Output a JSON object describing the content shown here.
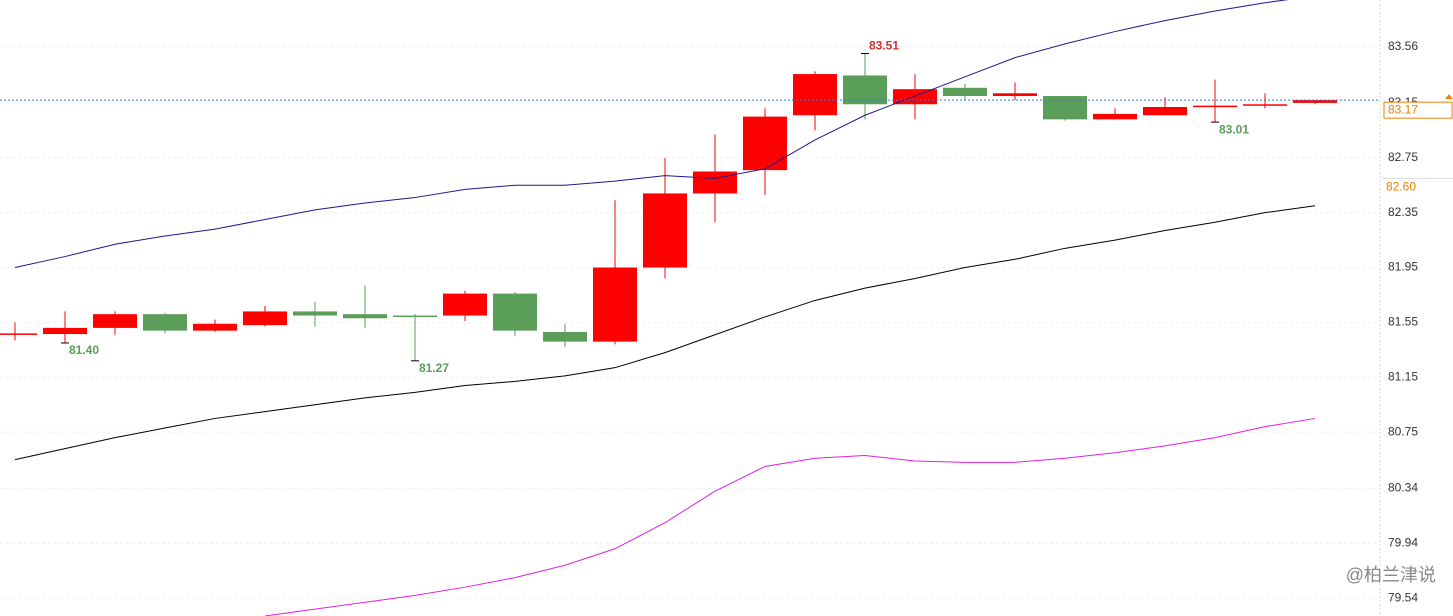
{
  "chart_data": {
    "type": "candlestick",
    "open": [
      81.46,
      81.465,
      81.51,
      81.61,
      81.49,
      81.53,
      81.63,
      81.61,
      81.6,
      81.6,
      81.76,
      81.48,
      81.41,
      81.95,
      82.49,
      82.66,
      83.06,
      83.35,
      83.14,
      83.26,
      83.2,
      83.2,
      83.03,
      83.06,
      83.12,
      83.13,
      83.15
    ],
    "high": [
      81.55,
      81.63,
      81.63,
      81.62,
      81.57,
      81.67,
      81.7,
      81.82,
      81.61,
      81.78,
      81.77,
      81.54,
      82.44,
      82.75,
      82.92,
      83.11,
      83.38,
      83.51,
      83.36,
      83.29,
      83.3,
      83.2,
      83.11,
      83.19,
      83.32,
      83.22,
      83.17
    ],
    "low": [
      81.42,
      81.4,
      81.46,
      81.47,
      81.48,
      81.52,
      81.52,
      81.51,
      81.27,
      81.56,
      81.45,
      81.37,
      81.39,
      81.87,
      82.28,
      82.48,
      82.95,
      83.03,
      83.03,
      83.17,
      83.17,
      83.02,
      83.03,
      83.06,
      83.01,
      83.11,
      83.14
    ],
    "close": [
      81.47,
      81.51,
      81.61,
      81.49,
      81.54,
      81.63,
      81.6,
      81.58,
      81.59,
      81.76,
      81.49,
      81.41,
      81.95,
      82.49,
      82.65,
      83.05,
      83.36,
      83.14,
      83.25,
      83.2,
      83.22,
      83.03,
      83.07,
      83.12,
      83.13,
      83.14,
      83.17
    ],
    "up_color": "#ff0000",
    "down_color": "#5a9e5a",
    "lines": [
      {
        "color": "#1a1a8c",
        "values": [
          81.95,
          82.03,
          82.12,
          82.18,
          82.23,
          82.3,
          82.37,
          82.42,
          82.46,
          82.52,
          82.55,
          82.55,
          82.58,
          82.62,
          82.6,
          82.67,
          82.88,
          83.06,
          83.2,
          83.34,
          83.48,
          83.58,
          83.67,
          83.75,
          83.82,
          83.88,
          83.93
        ]
      },
      {
        "color": "#000000",
        "values": [
          80.55,
          80.63,
          80.71,
          80.78,
          80.85,
          80.9,
          80.95,
          81.0,
          81.04,
          81.09,
          81.12,
          81.16,
          81.22,
          81.33,
          81.46,
          81.59,
          81.71,
          81.8,
          81.87,
          81.95,
          82.01,
          82.09,
          82.15,
          82.22,
          82.28,
          82.35,
          82.4
        ]
      },
      {
        "color": "#e020e0",
        "values": [
          null,
          null,
          null,
          null,
          null,
          79.41,
          79.46,
          79.51,
          79.56,
          79.62,
          79.69,
          79.78,
          79.9,
          80.09,
          80.32,
          80.5,
          80.56,
          80.58,
          80.54,
          80.53,
          80.53,
          80.56,
          80.6,
          80.65,
          80.71,
          80.79,
          80.85
        ]
      }
    ],
    "ylim": [
      79.41,
      83.9
    ],
    "yticks": [
      83.56,
      83.15,
      82.75,
      82.35,
      81.95,
      {
        "value": 81.55,
        "label": "81.55"
      },
      81.15,
      80.75,
      80.34,
      79.94,
      79.54
    ],
    "grid": true,
    "annotations": [
      {
        "value": 83.51,
        "label": "83.51",
        "color": "#d03030",
        "at": "high"
      },
      {
        "value": 81.4,
        "label": "81.40",
        "color": "#5a9e5a",
        "at": "low"
      },
      {
        "value": 81.27,
        "label": "81.27",
        "color": "#5a9e5a",
        "at": "low"
      },
      {
        "value": 83.01,
        "label": "83.01",
        "color": "#5a9e5a",
        "at": "low"
      }
    ],
    "last_price": {
      "value": 83.17,
      "label": "83.17",
      "color": "#f08000"
    },
    "marker_price": {
      "value": 82.6,
      "label": "82.60",
      "color": "#f08000"
    },
    "watermark": "@柏兰津说"
  }
}
